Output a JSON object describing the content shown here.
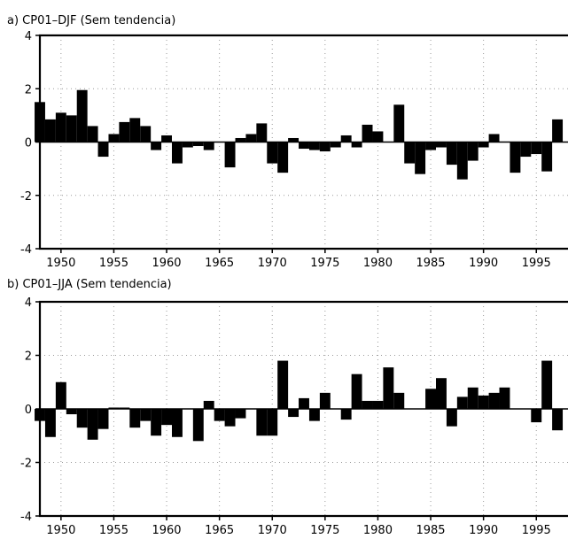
{
  "chart_data": [
    {
      "type": "bar",
      "title": "a) CP01–DJF (Sem tendencia)",
      "xlabel": "",
      "ylabel": "",
      "ylim": [
        -4,
        4
      ],
      "xlim": [
        1948,
        1998
      ],
      "yticks": [
        "-4",
        "-2",
        "0",
        "2",
        "4"
      ],
      "xticks": [
        "1950",
        "1955",
        "1960",
        "1965",
        "1970",
        "1975",
        "1980",
        "1985",
        "1990",
        "1995"
      ],
      "grid": true,
      "bar_color": "#000000",
      "x": [
        1948,
        1949,
        1950,
        1951,
        1952,
        1953,
        1954,
        1955,
        1956,
        1957,
        1958,
        1959,
        1960,
        1961,
        1962,
        1963,
        1964,
        1965,
        1966,
        1967,
        1968,
        1969,
        1970,
        1971,
        1972,
        1973,
        1974,
        1975,
        1976,
        1977,
        1978,
        1979,
        1980,
        1981,
        1982,
        1983,
        1984,
        1985,
        1986,
        1987,
        1988,
        1989,
        1990,
        1991,
        1992,
        1993,
        1994,
        1995,
        1996,
        1997,
        1998
      ],
      "values": [
        1.5,
        0.85,
        1.1,
        1.0,
        1.95,
        0.6,
        -0.55,
        0.3,
        0.75,
        0.9,
        0.6,
        -0.3,
        0.25,
        -0.8,
        -0.2,
        -0.15,
        -0.3,
        0.0,
        -0.95,
        0.15,
        0.3,
        0.7,
        -0.8,
        -1.15,
        0.15,
        -0.25,
        -0.3,
        -0.35,
        -0.2,
        0.25,
        -0.2,
        0.65,
        0.4,
        0.0,
        1.4,
        -0.8,
        -1.2,
        -0.3,
        -0.2,
        -0.85,
        -1.4,
        -0.7,
        -0.2,
        0.3,
        0.0,
        -1.15,
        -0.55,
        -0.45,
        -1.1,
        0.85,
        0.0
      ]
    },
    {
      "type": "bar",
      "title": "b) CP01–JJA (Sem tendencia)",
      "xlabel": "",
      "ylabel": "",
      "ylim": [
        -4,
        4
      ],
      "xlim": [
        1948,
        1998
      ],
      "yticks": [
        "-4",
        "-2",
        "0",
        "2",
        "4"
      ],
      "xticks": [
        "1950",
        "1955",
        "1960",
        "1965",
        "1970",
        "1975",
        "1980",
        "1985",
        "1990",
        "1995"
      ],
      "grid": true,
      "bar_color": "#000000",
      "x": [
        1948,
        1949,
        1950,
        1951,
        1952,
        1953,
        1954,
        1955,
        1956,
        1957,
        1958,
        1959,
        1960,
        1961,
        1962,
        1963,
        1964,
        1965,
        1966,
        1967,
        1968,
        1969,
        1970,
        1971,
        1972,
        1973,
        1974,
        1975,
        1976,
        1977,
        1978,
        1979,
        1980,
        1981,
        1982,
        1983,
        1984,
        1985,
        1986,
        1987,
        1988,
        1989,
        1990,
        1991,
        1992,
        1993,
        1994,
        1995,
        1996,
        1997,
        1998
      ],
      "values": [
        -0.45,
        -1.05,
        1.0,
        -0.2,
        -0.7,
        -1.15,
        -0.75,
        0.05,
        0.05,
        -0.7,
        -0.45,
        -1.0,
        -0.6,
        -1.05,
        0.0,
        -1.2,
        0.3,
        -0.45,
        -0.65,
        -0.35,
        0.0,
        -1.0,
        -1.0,
        1.8,
        -0.3,
        0.4,
        -0.45,
        0.6,
        0.0,
        -0.4,
        1.3,
        0.3,
        0.3,
        1.55,
        0.6,
        0.0,
        0.0,
        0.75,
        1.15,
        -0.65,
        0.45,
        0.8,
        0.5,
        0.6,
        0.8,
        0.0,
        0.0,
        -0.5,
        1.8,
        -0.8,
        0.0
      ]
    }
  ]
}
